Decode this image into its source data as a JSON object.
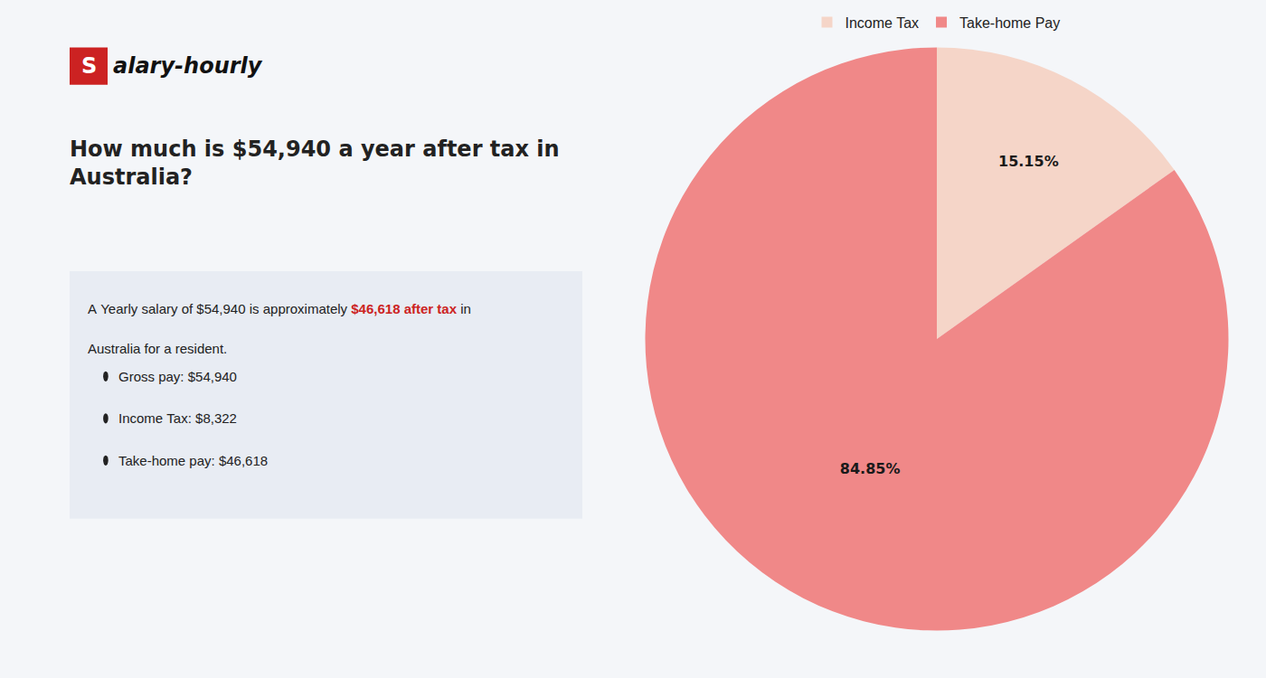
{
  "chart_data": {
    "type": "pie",
    "title": "How much is $54,940 a year after tax in\nAustralia?",
    "annotations": [
      "S",
      "alary-hourly",
      "A Yearly salary of $54,940 is approximately ",
      "$46,618 after tax",
      " in",
      "Australia for a resident.",
      "Gross pay: $54,940",
      "Income Tax: $8,322",
      "Take-home pay: $46,618"
    ],
    "categories": [
      "Income Tax",
      "Take-home Pay"
    ],
    "values": [
      15.15,
      84.85
    ],
    "value_labels": [
      "15.15%",
      "84.85%"
    ],
    "colors": [
      "#f5d5c8",
      "#f08888"
    ],
    "data_labels": true,
    "legend": "top"
  }
}
